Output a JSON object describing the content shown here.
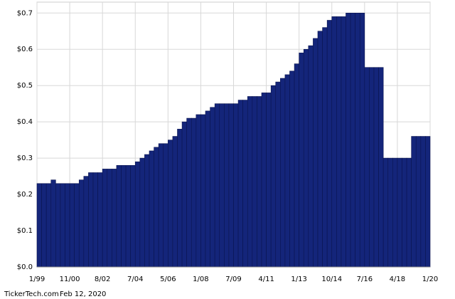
{
  "chart_data": {
    "type": "bar",
    "values": [
      0.23,
      0.23,
      0.23,
      0.24,
      0.23,
      0.23,
      0.23,
      0.23,
      0.23,
      0.24,
      0.25,
      0.26,
      0.26,
      0.26,
      0.27,
      0.27,
      0.27,
      0.28,
      0.28,
      0.28,
      0.28,
      0.29,
      0.3,
      0.31,
      0.32,
      0.33,
      0.34,
      0.34,
      0.35,
      0.36,
      0.38,
      0.4,
      0.41,
      0.41,
      0.42,
      0.42,
      0.43,
      0.44,
      0.45,
      0.45,
      0.45,
      0.45,
      0.45,
      0.46,
      0.46,
      0.47,
      0.47,
      0.47,
      0.48,
      0.48,
      0.5,
      0.51,
      0.52,
      0.53,
      0.54,
      0.56,
      0.59,
      0.6,
      0.61,
      0.63,
      0.65,
      0.66,
      0.68,
      0.69,
      0.69,
      0.69,
      0.7,
      0.7,
      0.7,
      0.7,
      0.55,
      0.55,
      0.55,
      0.55,
      0.3,
      0.3,
      0.3,
      0.3,
      0.3,
      0.3,
      0.36,
      0.36,
      0.36,
      0.36
    ],
    "color": "#14257a",
    "xlim": [
      0,
      84
    ],
    "xticks": [
      {
        "value": 0,
        "label": "1/99"
      },
      {
        "value": 7,
        "label": "11/00"
      },
      {
        "value": 14,
        "label": "8/02"
      },
      {
        "value": 21,
        "label": "7/04"
      },
      {
        "value": 28,
        "label": "5/06"
      },
      {
        "value": 35,
        "label": "1/08"
      },
      {
        "value": 42,
        "label": "7/09"
      },
      {
        "value": 49,
        "label": "4/11"
      },
      {
        "value": 56,
        "label": "1/13"
      },
      {
        "value": 63,
        "label": "10/14"
      },
      {
        "value": 70,
        "label": "7/16"
      },
      {
        "value": 77,
        "label": "4/18"
      },
      {
        "value": 84,
        "label": "1/20"
      }
    ],
    "ylim": [
      0,
      0.73
    ],
    "yticks": [
      {
        "value": 0,
        "label": "$0.0"
      },
      {
        "value": 0.1,
        "label": "$0.1"
      },
      {
        "value": 0.2,
        "label": "$0.2"
      },
      {
        "value": 0.3,
        "label": "$0.3"
      },
      {
        "value": 0.4,
        "label": "$0.4"
      },
      {
        "value": 0.5,
        "label": "$0.5"
      },
      {
        "value": 0.6,
        "label": "$0.6"
      },
      {
        "value": 0.7,
        "label": "$0.7"
      }
    ],
    "grid": true,
    "footer": [
      "TickerTech.com",
      "Feb 12, 2020"
    ]
  }
}
